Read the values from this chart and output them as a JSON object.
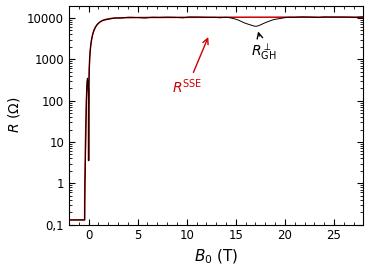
{
  "title": "",
  "xlabel": "$B_0$ (T)",
  "ylabel": "$R$ ($\\Omega$)",
  "xlim": [
    -2,
    28
  ],
  "ylim_log": [
    0.1,
    20000
  ],
  "xticks": [
    0,
    5,
    10,
    15,
    20,
    25
  ],
  "yticks_log": [
    0.1,
    1,
    10,
    100,
    1000,
    10000
  ],
  "ytick_labels": [
    "0,1",
    "1",
    "10",
    "100",
    "1000",
    "10000"
  ],
  "line_black_color": "#000000",
  "line_red_color": "#cc0000",
  "annotation_red": "$R^{\\mathrm{SSE}}$",
  "annotation_black": "$R_{\\mathrm{GH}}^{\\perp}$",
  "figsize": [
    3.69,
    2.72
  ],
  "dpi": 100
}
